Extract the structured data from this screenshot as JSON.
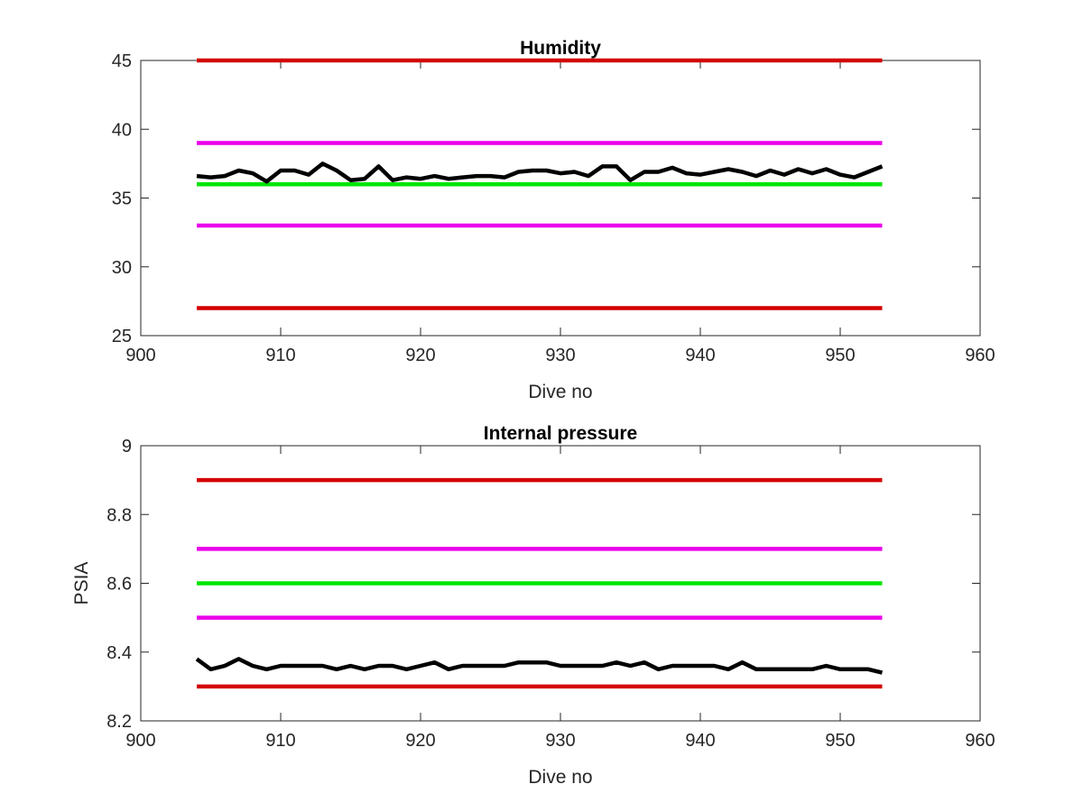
{
  "chart_data": [
    {
      "type": "line",
      "title": "Humidity",
      "xlabel": "Dive no",
      "ylabel": "",
      "xlim": [
        900,
        960
      ],
      "ylim": [
        25,
        45
      ],
      "xticks": [
        900,
        910,
        920,
        930,
        940,
        950,
        960
      ],
      "yticks": [
        25,
        30,
        35,
        40,
        45
      ],
      "grid": false,
      "reference_lines": [
        {
          "y": 45,
          "x_start": 904,
          "x_end": 953,
          "color": "#d40000"
        },
        {
          "y": 39,
          "x_start": 904,
          "x_end": 953,
          "color": "#ea00ea"
        },
        {
          "y": 36,
          "x_start": 904,
          "x_end": 953,
          "color": "#00e600"
        },
        {
          "y": 33,
          "x_start": 904,
          "x_end": 953,
          "color": "#ea00ea"
        },
        {
          "y": 27,
          "x_start": 904,
          "x_end": 953,
          "color": "#d40000"
        }
      ],
      "series": [
        {
          "color": "#000000",
          "x": [
            904,
            905,
            906,
            907,
            908,
            909,
            910,
            911,
            912,
            913,
            914,
            915,
            916,
            917,
            918,
            919,
            920,
            921,
            922,
            923,
            924,
            925,
            926,
            927,
            928,
            929,
            930,
            931,
            932,
            933,
            934,
            935,
            936,
            937,
            938,
            939,
            940,
            941,
            942,
            943,
            944,
            945,
            946,
            947,
            948,
            949,
            950,
            951,
            952,
            953
          ],
          "y": [
            36.6,
            36.5,
            36.6,
            37.0,
            36.8,
            36.2,
            37.0,
            37.0,
            36.7,
            37.5,
            37.0,
            36.3,
            36.4,
            37.3,
            36.3,
            36.5,
            36.4,
            36.6,
            36.4,
            36.5,
            36.6,
            36.6,
            36.5,
            36.9,
            37.0,
            37.0,
            36.8,
            36.9,
            36.6,
            37.3,
            37.3,
            36.3,
            36.9,
            36.9,
            37.2,
            36.8,
            36.7,
            36.9,
            37.1,
            36.9,
            36.6,
            37.0,
            36.7,
            37.1,
            36.8,
            37.1,
            36.7,
            36.5,
            36.9,
            37.3
          ]
        }
      ]
    },
    {
      "type": "line",
      "title": "Internal pressure",
      "xlabel": "Dive no",
      "ylabel": "PSIA",
      "xlim": [
        900,
        960
      ],
      "ylim": [
        8.2,
        9.0
      ],
      "xticks": [
        900,
        910,
        920,
        930,
        940,
        950,
        960
      ],
      "yticks": [
        8.2,
        8.4,
        8.6,
        8.8,
        9.0
      ],
      "ytick_labels": [
        "8.2",
        "8.4",
        "8.6",
        "8.8",
        "9"
      ],
      "grid": false,
      "reference_lines": [
        {
          "y": 8.9,
          "x_start": 904,
          "x_end": 953,
          "color": "#d40000"
        },
        {
          "y": 8.7,
          "x_start": 904,
          "x_end": 953,
          "color": "#ea00ea"
        },
        {
          "y": 8.6,
          "x_start": 904,
          "x_end": 953,
          "color": "#00e600"
        },
        {
          "y": 8.5,
          "x_start": 904,
          "x_end": 953,
          "color": "#ea00ea"
        },
        {
          "y": 8.3,
          "x_start": 904,
          "x_end": 953,
          "color": "#d40000"
        }
      ],
      "series": [
        {
          "color": "#000000",
          "x": [
            904,
            905,
            906,
            907,
            908,
            909,
            910,
            911,
            912,
            913,
            914,
            915,
            916,
            917,
            918,
            919,
            920,
            921,
            922,
            923,
            924,
            925,
            926,
            927,
            928,
            929,
            930,
            931,
            932,
            933,
            934,
            935,
            936,
            937,
            938,
            939,
            940,
            941,
            942,
            943,
            944,
            945,
            946,
            947,
            948,
            949,
            950,
            951,
            952,
            953
          ],
          "y": [
            8.38,
            8.35,
            8.36,
            8.38,
            8.36,
            8.35,
            8.36,
            8.36,
            8.36,
            8.36,
            8.35,
            8.36,
            8.35,
            8.36,
            8.36,
            8.35,
            8.36,
            8.37,
            8.35,
            8.36,
            8.36,
            8.36,
            8.36,
            8.37,
            8.37,
            8.37,
            8.36,
            8.36,
            8.36,
            8.36,
            8.37,
            8.36,
            8.37,
            8.35,
            8.36,
            8.36,
            8.36,
            8.36,
            8.35,
            8.37,
            8.35,
            8.35,
            8.35,
            8.35,
            8.35,
            8.36,
            8.35,
            8.35,
            8.35,
            8.34
          ]
        }
      ]
    }
  ]
}
